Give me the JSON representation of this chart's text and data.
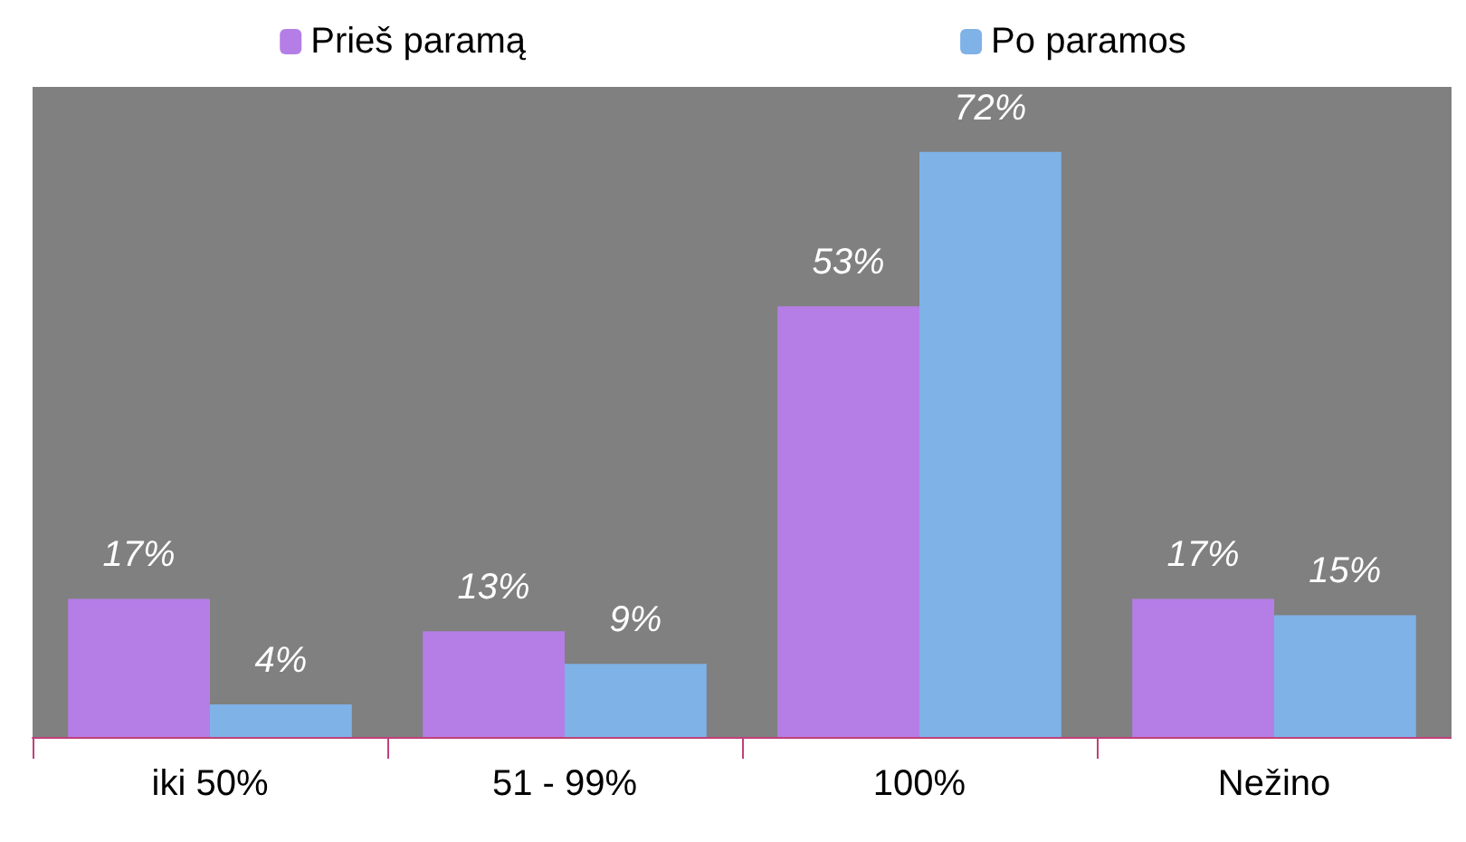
{
  "chart_data": {
    "type": "bar",
    "categories": [
      "iki 50%",
      "51 - 99%",
      "100%",
      "Nežino"
    ],
    "series": [
      {
        "name": "Prieš paramą",
        "color": "#b57ee6",
        "values": [
          17,
          13,
          53,
          17
        ],
        "value_labels": [
          "17%",
          "13%",
          "53%",
          "17%"
        ]
      },
      {
        "name": "Po paramos",
        "color": "#7fb2e6",
        "values": [
          4,
          9,
          72,
          15
        ],
        "value_labels": [
          "4%",
          "9%",
          "72%",
          "15%"
        ]
      }
    ],
    "legend": "top",
    "grid": false
  }
}
